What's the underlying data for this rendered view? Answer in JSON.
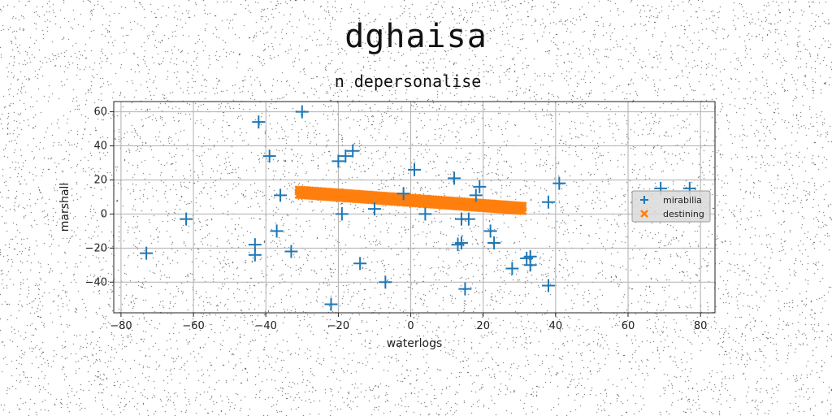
{
  "chart_data": {
    "type": "scatter",
    "title": "dghaisa",
    "subtitle": "n depersonalise",
    "xlabel": "waterlogs",
    "ylabel": "marshall",
    "xlim": [
      -82,
      84
    ],
    "ylim": [
      -58,
      66
    ],
    "xticks": [
      -80,
      -60,
      -40,
      -20,
      0,
      20,
      40,
      60,
      80
    ],
    "yticks": [
      -40,
      -20,
      0,
      20,
      40,
      60
    ],
    "grid": true,
    "legend_position": "right",
    "series": [
      {
        "name": "mirabilia",
        "marker": "plus",
        "color": "#1f77b4",
        "points": [
          [
            -73,
            -23
          ],
          [
            -62,
            -3
          ],
          [
            -42,
            54
          ],
          [
            -43,
            -18
          ],
          [
            -43,
            -24
          ],
          [
            -39,
            34
          ],
          [
            -37,
            -10
          ],
          [
            -36,
            11
          ],
          [
            -33,
            -22
          ],
          [
            -30,
            60
          ],
          [
            -20,
            31
          ],
          [
            -18,
            34
          ],
          [
            -16,
            37
          ],
          [
            -19,
            0
          ],
          [
            -14,
            -29
          ],
          [
            -10,
            3
          ],
          [
            -7,
            -40
          ],
          [
            -2,
            12
          ],
          [
            1,
            26
          ],
          [
            4,
            0
          ],
          [
            12,
            21
          ],
          [
            13,
            -18
          ],
          [
            14,
            -3
          ],
          [
            14,
            -17
          ],
          [
            15,
            -44
          ],
          [
            16,
            -3
          ],
          [
            18,
            11
          ],
          [
            19,
            16
          ],
          [
            22,
            -10
          ],
          [
            23,
            -17
          ],
          [
            28,
            -32
          ],
          [
            32,
            -26
          ],
          [
            33,
            -25
          ],
          [
            33,
            -30
          ],
          [
            38,
            -42
          ],
          [
            38,
            7
          ],
          [
            41,
            18
          ],
          [
            69,
            15
          ],
          [
            77,
            15
          ],
          [
            -22,
            -53
          ]
        ]
      },
      {
        "name": "destining",
        "marker": "x",
        "color": "#ff7f0e",
        "line_from": [
          -31,
          13
        ],
        "line_to": [
          31,
          3.5
        ]
      }
    ]
  }
}
